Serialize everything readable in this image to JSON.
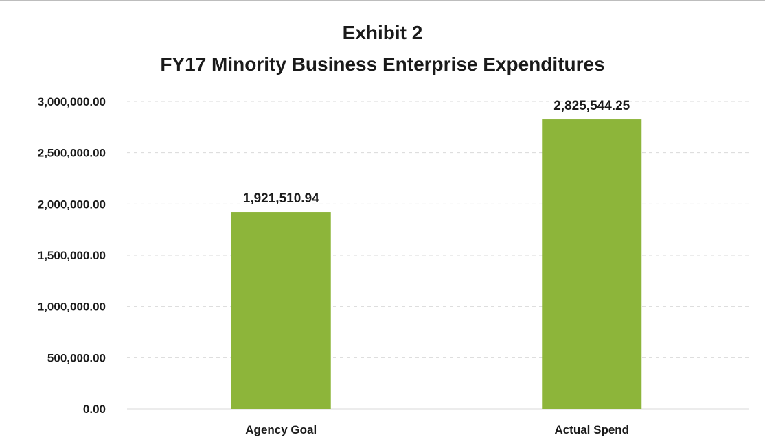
{
  "chart_data": {
    "type": "bar",
    "title": "Exhibit 2",
    "subtitle": "FY17 Minority Business Enterprise Expenditures",
    "categories": [
      "Agency Goal",
      "Actual Spend"
    ],
    "values": [
      1921510.94,
      2825544.25
    ],
    "data_labels": [
      "1,921,510.94",
      "2,825,544.25"
    ],
    "ylim": [
      0,
      3000000
    ],
    "yticks": [
      0,
      500000,
      1000000,
      1500000,
      2000000,
      2500000,
      3000000
    ],
    "ytick_labels": [
      "0.00",
      "500,000.00",
      "1,000,000.00",
      "1,500,000.00",
      "2,000,000.00",
      "2,500,000.00",
      "3,000,000.00"
    ],
    "xlabel": "",
    "ylabel": "",
    "grid": true,
    "legend": "none",
    "bar_color": "#8db53a"
  }
}
